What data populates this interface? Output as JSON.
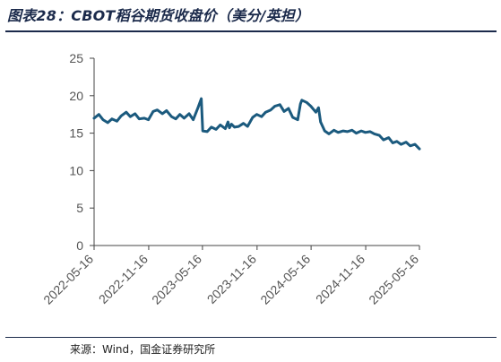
{
  "header": {
    "title": "图表28：CBOT稻谷期货收盘价（美分/英担）"
  },
  "footer": {
    "source": "来源：Wind，国金证券研究所"
  },
  "colors": {
    "series": "#1b5a7e",
    "axis": "#444444",
    "title": "#1b2a4b"
  },
  "chart_data": {
    "type": "line",
    "title": "CBOT稻谷期货收盘价（美分/英担）",
    "xlabel": "",
    "ylabel": "",
    "ylim": [
      0,
      25
    ],
    "yticks": [
      0,
      5,
      10,
      15,
      20,
      25
    ],
    "xlim": [
      "2022-05-16",
      "2025-05-16"
    ],
    "xticks": [
      "2022-05-16",
      "2022-11-16",
      "2023-05-16",
      "2023-11-16",
      "2024-05-16",
      "2024-11-16",
      "2025-05-16"
    ],
    "grid": false,
    "legend": "none",
    "series": [
      {
        "x": [
          "2022-05-16",
          "2022-06-01",
          "2022-06-15",
          "2022-07-01",
          "2022-07-15",
          "2022-08-01",
          "2022-08-15",
          "2022-09-01",
          "2022-09-15",
          "2022-10-01",
          "2022-10-15",
          "2022-11-01",
          "2022-11-15",
          "2022-12-01",
          "2022-12-15",
          "2023-01-01",
          "2023-01-15",
          "2023-02-01",
          "2023-02-15",
          "2023-03-01",
          "2023-03-15",
          "2023-04-01",
          "2023-04-15",
          "2023-05-01",
          "2023-05-12",
          "2023-05-17",
          "2023-06-01",
          "2023-06-15",
          "2023-07-01",
          "2023-07-15",
          "2023-08-01",
          "2023-08-10",
          "2023-08-15",
          "2023-08-22",
          "2023-09-01",
          "2023-09-15",
          "2023-10-01",
          "2023-10-15",
          "2023-11-01",
          "2023-11-15",
          "2023-12-01",
          "2023-12-15",
          "2024-01-01",
          "2024-01-15",
          "2024-02-01",
          "2024-02-15",
          "2024-03-01",
          "2024-03-15",
          "2024-04-01",
          "2024-04-10",
          "2024-04-15",
          "2024-05-01",
          "2024-05-15",
          "2024-06-01",
          "2024-06-10",
          "2024-06-17",
          "2024-07-01",
          "2024-07-15",
          "2024-08-01",
          "2024-08-15",
          "2024-09-01",
          "2024-09-15",
          "2024-10-01",
          "2024-10-15",
          "2024-11-01",
          "2024-11-15",
          "2024-12-01",
          "2024-12-15",
          "2025-01-01",
          "2025-01-15",
          "2025-02-01",
          "2025-02-15",
          "2025-03-01",
          "2025-03-15",
          "2025-04-01",
          "2025-04-15",
          "2025-05-01",
          "2025-05-16"
        ],
        "values": [
          17.0,
          17.5,
          16.8,
          16.4,
          16.9,
          16.6,
          17.3,
          17.8,
          17.2,
          17.6,
          16.9,
          17.0,
          16.8,
          17.9,
          18.1,
          17.6,
          18.0,
          17.2,
          16.9,
          17.5,
          17.0,
          17.6,
          16.8,
          18.4,
          19.6,
          15.3,
          15.2,
          15.8,
          15.5,
          16.1,
          15.6,
          16.5,
          15.7,
          16.2,
          15.8,
          15.9,
          16.3,
          15.9,
          17.1,
          17.5,
          17.2,
          17.8,
          18.1,
          18.6,
          18.8,
          17.9,
          18.3,
          17.1,
          16.8,
          18.9,
          19.4,
          19.1,
          18.6,
          17.8,
          18.4,
          16.5,
          15.3,
          14.9,
          15.4,
          15.1,
          15.3,
          15.2,
          15.4,
          15.0,
          15.3,
          15.1,
          15.2,
          14.9,
          14.7,
          14.1,
          14.4,
          13.7,
          13.9,
          13.5,
          13.8,
          13.3,
          13.5,
          12.9
        ]
      }
    ]
  }
}
